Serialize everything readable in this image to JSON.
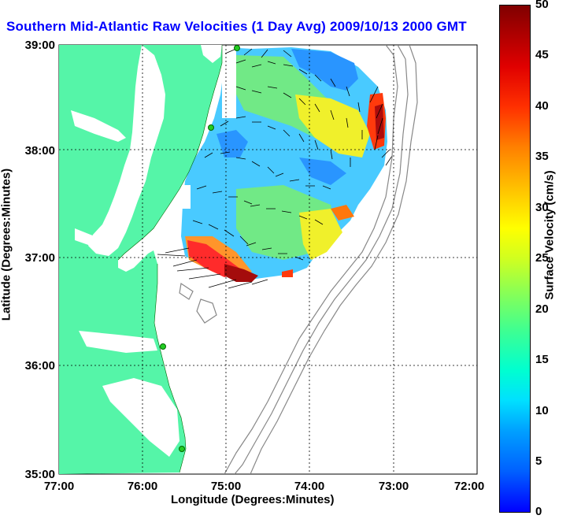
{
  "title": "Southern Mid-Atlantic Raw Velocities (1 Day Avg) 2009/10/13 2000 GMT",
  "xlabel": "Longitude (Degrees:Minutes)",
  "ylabel": "Latitude (Degrees:Minutes)",
  "x_ticks": [
    "77:00",
    "76:00",
    "75:00",
    "74:00",
    "73:00",
    "72:00"
  ],
  "y_ticks": [
    "39:00",
    "38:00",
    "37:00",
    "36:00",
    "35:00"
  ],
  "colorbar": {
    "label": "Surface Velocity (cm/s)",
    "ticks": [
      "50",
      "45",
      "40",
      "35",
      "30",
      "25",
      "20",
      "15",
      "10",
      "5",
      "0"
    ],
    "range": [
      0,
      50
    ]
  },
  "colors": {
    "land": "#55f5a8",
    "water": "#ffffff",
    "title": "#0000ff",
    "contour": "#888888",
    "station": "#22cc22"
  }
}
